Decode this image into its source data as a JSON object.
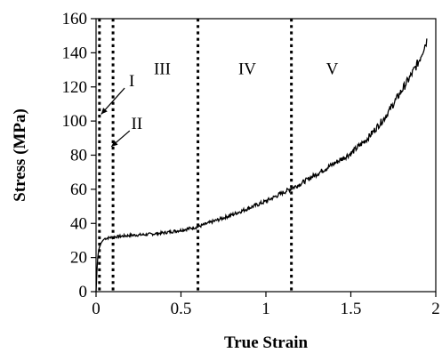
{
  "chart_data": {
    "type": "line",
    "xlabel": "True Strain",
    "ylabel": "Stress (MPa)",
    "xlim": [
      0,
      2
    ],
    "ylim": [
      0,
      160
    ],
    "x_ticks": [
      0,
      0.5,
      1,
      1.5,
      2
    ],
    "x_tick_labels": [
      "0",
      "0.5",
      "1",
      "1.5",
      "2"
    ],
    "y_ticks": [
      0,
      20,
      40,
      60,
      80,
      100,
      120,
      140,
      160
    ],
    "y_tick_labels": [
      "0",
      "20",
      "40",
      "60",
      "80",
      "100",
      "120",
      "140",
      "160"
    ],
    "grid": false,
    "series": [
      {
        "x": [
          0,
          0.005,
          0.01,
          0.015,
          0.02,
          0.03,
          0.04,
          0.05,
          0.07,
          0.1,
          0.15,
          0.2,
          0.3,
          0.4,
          0.5,
          0.6,
          0.7,
          0.8,
          0.9,
          1.0,
          1.1,
          1.2,
          1.3,
          1.4,
          1.5,
          1.6,
          1.7,
          1.75,
          1.8,
          1.85,
          1.9,
          1.93,
          1.95
        ],
        "y": [
          0,
          12,
          20,
          24,
          26,
          28.5,
          30,
          31,
          31.5,
          32,
          32.5,
          33,
          33.5,
          34.5,
          36,
          38,
          41.5,
          45,
          49,
          53,
          58,
          63,
          69,
          75,
          81,
          90,
          102,
          110,
          118,
          126,
          135,
          143,
          148
        ]
      }
    ],
    "boundaries": [
      0.02,
      0.1,
      0.6,
      1.15
    ],
    "regions": [
      {
        "label": "I",
        "x": 0.21,
        "y": 124,
        "arrow_to": [
          0.03,
          104
        ]
      },
      {
        "label": "II",
        "x": 0.24,
        "y": 99,
        "arrow_to": [
          0.09,
          85
        ]
      },
      {
        "label": "III",
        "x": 0.39,
        "y": 131
      },
      {
        "label": "IV",
        "x": 0.89,
        "y": 131
      },
      {
        "label": "V",
        "x": 1.39,
        "y": 131
      }
    ]
  }
}
